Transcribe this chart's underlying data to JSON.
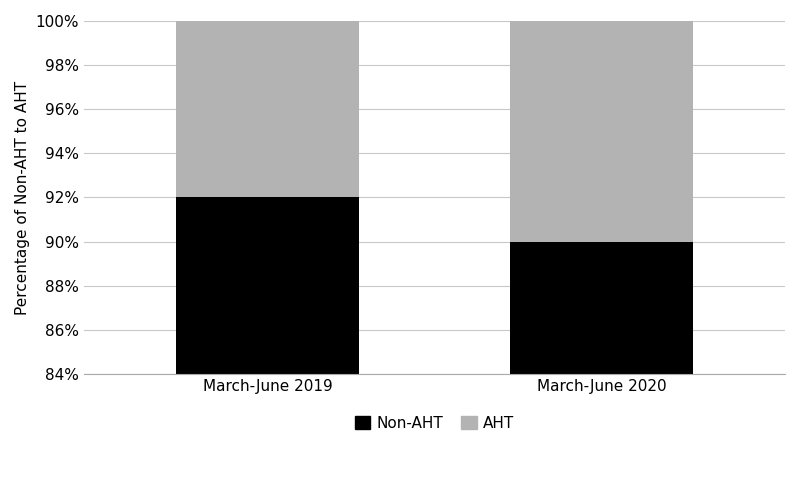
{
  "categories": [
    "March-June 2019",
    "March-June 2020"
  ],
  "non_aht_values": [
    92,
    90
  ],
  "aht_values": [
    8,
    10
  ],
  "non_aht_color": "#000000",
  "aht_color": "#b3b3b3",
  "ylabel": "Percentage of Non-AHT to AHT",
  "ymin": 84,
  "ymax": 100,
  "ytick_step": 2,
  "legend_labels": [
    "Non-AHT",
    "AHT"
  ],
  "bar_width": 0.55,
  "background_color": "#ffffff",
  "grid_color": "#c8c8c8",
  "tick_label_fontsize": 11,
  "ylabel_fontsize": 11,
  "legend_fontsize": 11
}
